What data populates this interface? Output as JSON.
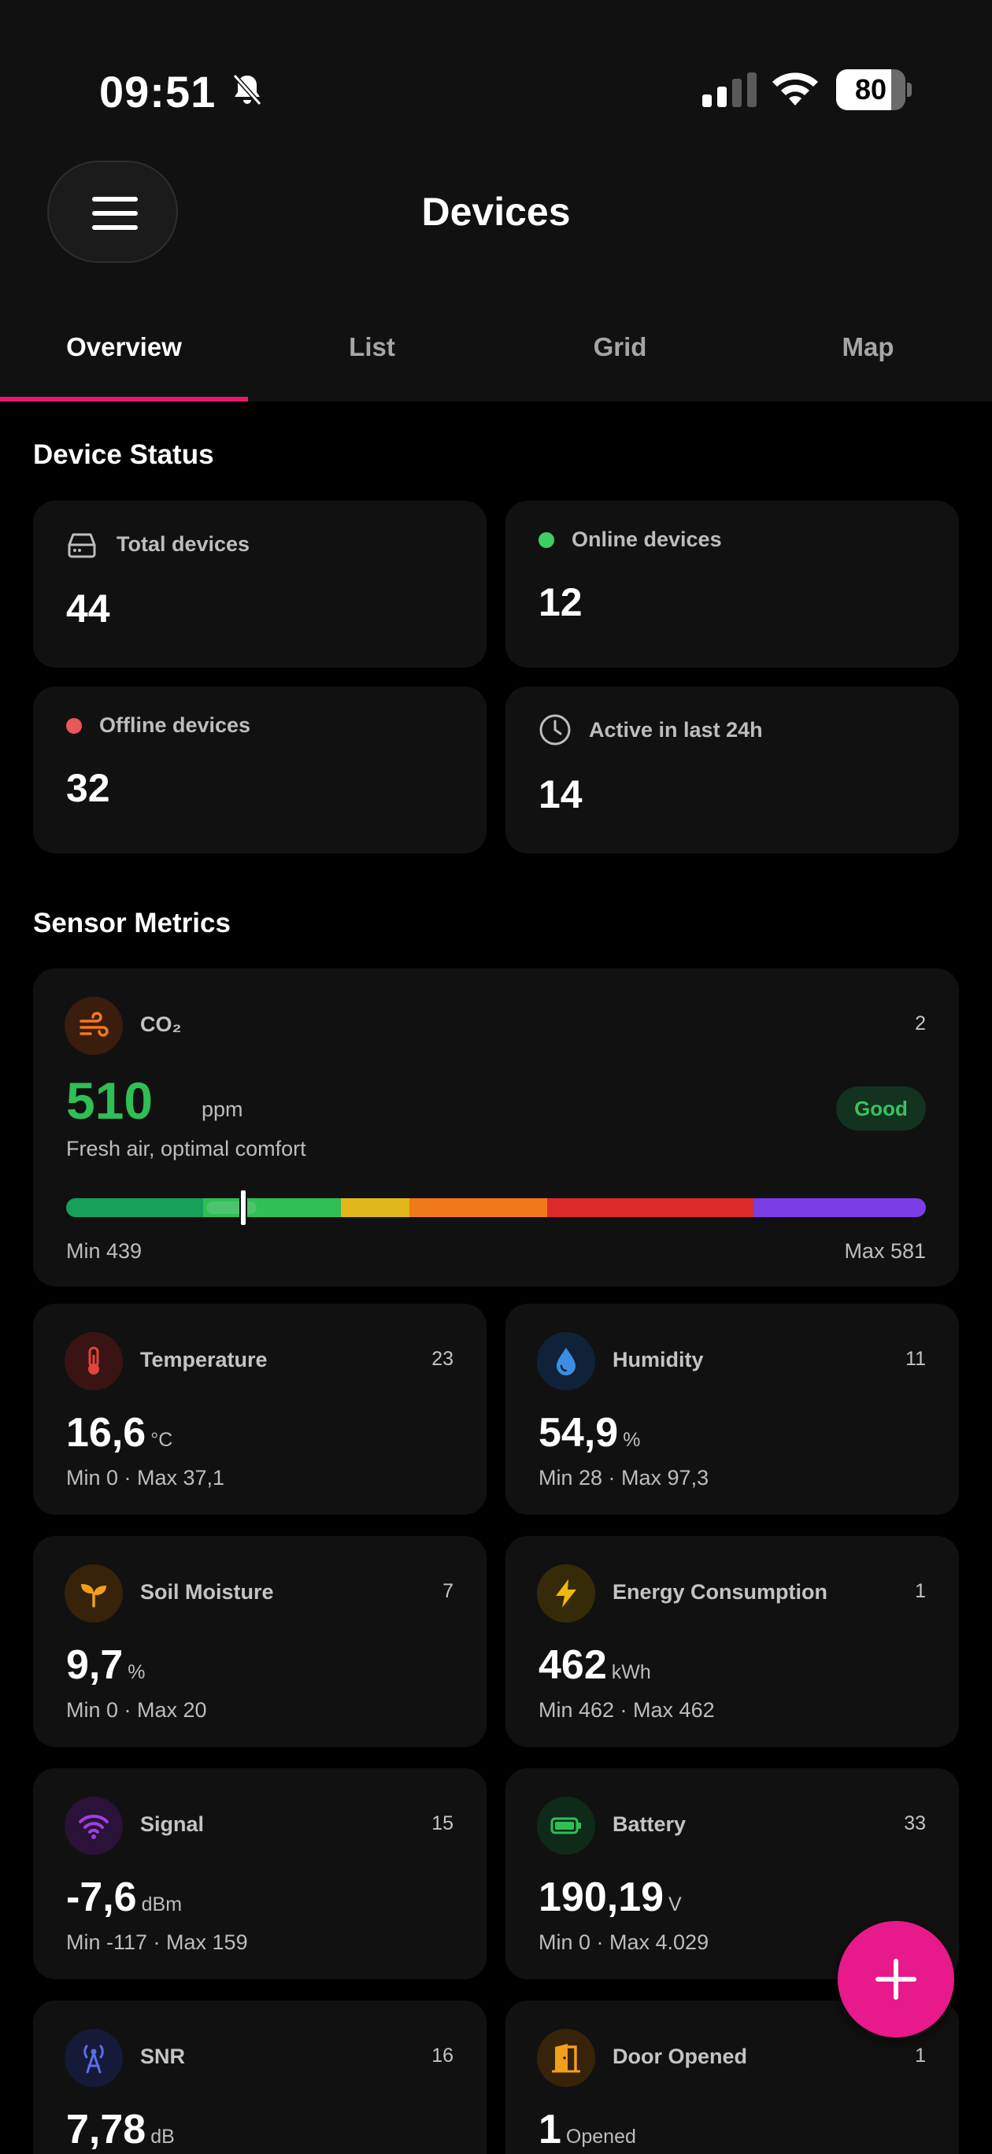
{
  "status_bar": {
    "time": "09:51",
    "battery": "80",
    "battery_level": 0.8
  },
  "header": {
    "title": "Devices"
  },
  "tabs": [
    {
      "label": "Overview",
      "active": true
    },
    {
      "label": "List",
      "active": false
    },
    {
      "label": "Grid",
      "active": false
    },
    {
      "label": "Map",
      "active": false
    }
  ],
  "device_status": {
    "title": "Device Status",
    "total": {
      "label": "Total devices",
      "value": "44"
    },
    "online": {
      "label": "Online devices",
      "value": "12"
    },
    "offline": {
      "label": "Offline devices",
      "value": "32"
    },
    "active": {
      "label": "Active in last 24h",
      "value": "14"
    }
  },
  "sensor_metrics": {
    "title": "Sensor Metrics",
    "co2": {
      "label": "CO₂",
      "count": "2",
      "value": "510",
      "unit": "ppm",
      "status": "Good",
      "description": "Fresh air, optimal comfort",
      "min": "Min 439",
      "max": "Max 581"
    },
    "metrics": [
      {
        "label": "Temperature",
        "count": "23",
        "value": "16,6",
        "unit": "°C",
        "range": "Min 0 · Max 37,1",
        "icon": "thermometer-icon",
        "color": "#e0453a"
      },
      {
        "label": "Humidity",
        "count": "11",
        "value": "54,9",
        "unit": "%",
        "range": "Min 28 · Max 97,3",
        "icon": "droplet-icon",
        "color": "#3b8ee6"
      },
      {
        "label": "Soil Moisture",
        "count": "7",
        "value": "9,7",
        "unit": "%",
        "range": "Min 0 · Max 20",
        "icon": "sprout-icon",
        "color": "#f0a01a"
      },
      {
        "label": "Energy Consumption",
        "count": "1",
        "value": "462",
        "unit": "kWh",
        "range": "Min 462 · Max 462",
        "icon": "lightning-icon",
        "color": "#f0b90b"
      },
      {
        "label": "Signal",
        "count": "15",
        "value": "-7,6",
        "unit": "dBm",
        "range": "Min -117 · Max 159",
        "icon": "wifi-icon",
        "color": "#a03ee0"
      },
      {
        "label": "Battery",
        "count": "33",
        "value": "190,19",
        "unit": "V",
        "range": "Min 0 · Max 4.029",
        "icon": "battery-icon",
        "color": "#2fbf55"
      },
      {
        "label": "SNR",
        "count": "16",
        "value": "7,78",
        "unit": "dB",
        "range": "",
        "icon": "antenna-icon",
        "color": "#5b6ee6"
      },
      {
        "label": "Door Opened",
        "count": "1",
        "value": "1",
        "unit": "Opened",
        "range": "",
        "icon": "door-icon",
        "color": "#f0a01a"
      }
    ]
  },
  "colors": {
    "accent": "#e6196e",
    "fab": "#e8198a",
    "online": "#3ecf65",
    "offline": "#e8575a"
  }
}
